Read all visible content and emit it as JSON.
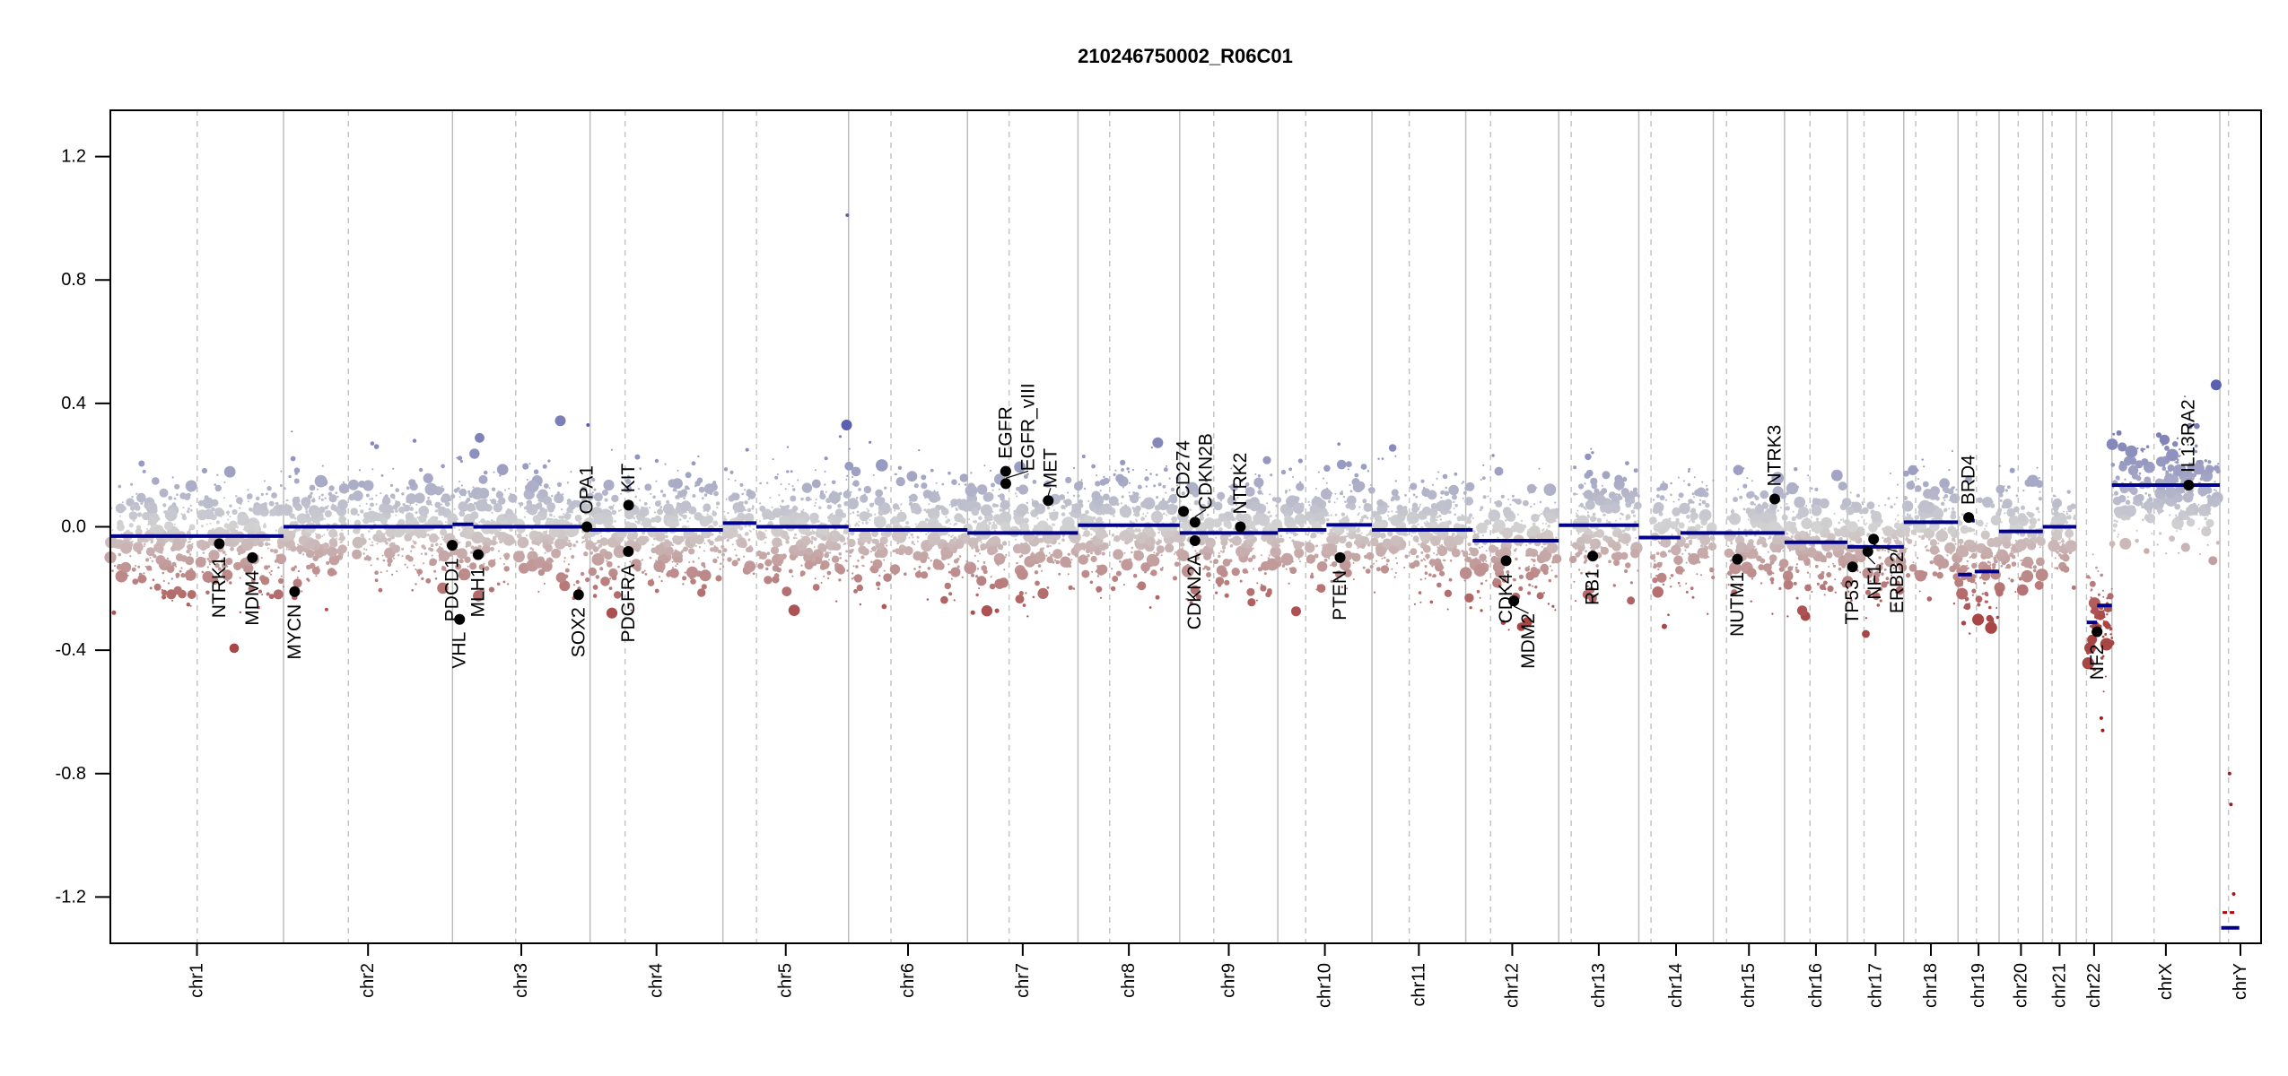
{
  "chart_data": {
    "type": "scatter",
    "title": "210246750002_R06C01",
    "xlabel": "",
    "ylabel": "",
    "ylim": [
      -1.35,
      1.35
    ],
    "yticks": [
      "-1.2",
      "-0.8",
      "-0.4",
      "0.0",
      "0.4",
      "0.8",
      "1.2"
    ],
    "grid": "chromosome boundaries (solid) and centromeres (dashed)",
    "colors": {
      "gain": "#7b7fb8",
      "neutral": "#d3d3d3",
      "loss": "#a84646",
      "segment": "#00008b",
      "gene": "#000000",
      "boundary": "#bdbdbd"
    },
    "chromosomes": [
      {
        "name": "chr1",
        "length": 249.3,
        "centromere": 125.0
      },
      {
        "name": "chr2",
        "length": 243.2,
        "centromere": 93.3
      },
      {
        "name": "chr3",
        "length": 198.0,
        "centromere": 91.0
      },
      {
        "name": "chr4",
        "length": 191.2,
        "centromere": 50.4
      },
      {
        "name": "chr5",
        "length": 180.9,
        "centromere": 48.4
      },
      {
        "name": "chr6",
        "length": 171.1,
        "centromere": 61.0
      },
      {
        "name": "chr7",
        "length": 159.1,
        "centromere": 59.9
      },
      {
        "name": "chr8",
        "length": 146.4,
        "centromere": 45.6
      },
      {
        "name": "chr9",
        "length": 141.2,
        "centromere": 49.0
      },
      {
        "name": "chr10",
        "length": 135.5,
        "centromere": 40.2
      },
      {
        "name": "chr11",
        "length": 135.0,
        "centromere": 53.7
      },
      {
        "name": "chr12",
        "length": 133.9,
        "centromere": 35.8
      },
      {
        "name": "chr13",
        "length": 115.2,
        "centromere": 17.9
      },
      {
        "name": "chr14",
        "length": 107.3,
        "centromere": 17.6
      },
      {
        "name": "chr15",
        "length": 102.5,
        "centromere": 19.0
      },
      {
        "name": "chr16",
        "length": 90.4,
        "centromere": 36.6
      },
      {
        "name": "chr17",
        "length": 81.2,
        "centromere": 24.0
      },
      {
        "name": "chr18",
        "length": 78.1,
        "centromere": 17.2
      },
      {
        "name": "chr19",
        "length": 59.1,
        "centromere": 26.5
      },
      {
        "name": "chr20",
        "length": 63.0,
        "centromere": 27.5
      },
      {
        "name": "chr21",
        "length": 48.1,
        "centromere": 13.2
      },
      {
        "name": "chr22",
        "length": 51.3,
        "centromere": 14.7
      },
      {
        "name": "chrX",
        "length": 155.3,
        "centromere": 60.6
      },
      {
        "name": "chrY",
        "length": 59.4,
        "centromere": 12.5
      }
    ],
    "segments": [
      {
        "chr": "chr1",
        "start": 0,
        "end": 249.3,
        "value": -0.03
      },
      {
        "chr": "chr2",
        "start": 0,
        "end": 243.2,
        "value": 0.0
      },
      {
        "chr": "chr3",
        "start": 0,
        "end": 30,
        "value": 0.008
      },
      {
        "chr": "chr3",
        "start": 30,
        "end": 198,
        "value": 0.0
      },
      {
        "chr": "chr4",
        "start": 0,
        "end": 191.2,
        "value": -0.01
      },
      {
        "chr": "chr5",
        "start": 0,
        "end": 48,
        "value": 0.012
      },
      {
        "chr": "chr5",
        "start": 48,
        "end": 180.9,
        "value": 0.0
      },
      {
        "chr": "chr6",
        "start": 0,
        "end": 171.1,
        "value": -0.01
      },
      {
        "chr": "chr7",
        "start": 0,
        "end": 159.1,
        "value": -0.02
      },
      {
        "chr": "chr8",
        "start": 0,
        "end": 146.4,
        "value": 0.005
      },
      {
        "chr": "chr9",
        "start": 0,
        "end": 141.2,
        "value": -0.02
      },
      {
        "chr": "chr10",
        "start": 0,
        "end": 70,
        "value": -0.01
      },
      {
        "chr": "chr10",
        "start": 70,
        "end": 135.5,
        "value": 0.006
      },
      {
        "chr": "chr11",
        "start": 0,
        "end": 135.0,
        "value": -0.01
      },
      {
        "chr": "chr12",
        "start": 0,
        "end": 10,
        "value": -0.01
      },
      {
        "chr": "chr12",
        "start": 10,
        "end": 133.9,
        "value": -0.045
      },
      {
        "chr": "chr13",
        "start": 0,
        "end": 115.2,
        "value": 0.005
      },
      {
        "chr": "chr14",
        "start": 0,
        "end": 60,
        "value": -0.035
      },
      {
        "chr": "chr14",
        "start": 60,
        "end": 107.3,
        "value": -0.02
      },
      {
        "chr": "chr15",
        "start": 0,
        "end": 102.5,
        "value": -0.02
      },
      {
        "chr": "chr16",
        "start": 0,
        "end": 90.4,
        "value": -0.05
      },
      {
        "chr": "chr17",
        "start": 0,
        "end": 81.2,
        "value": -0.065
      },
      {
        "chr": "chr18",
        "start": 0,
        "end": 78.1,
        "value": 0.015
      },
      {
        "chr": "chr19",
        "start": 0,
        "end": 20,
        "value": -0.155
      },
      {
        "chr": "chr19",
        "start": 20,
        "end": 24,
        "value": 0.02
      },
      {
        "chr": "chr19",
        "start": 24,
        "end": 59.1,
        "value": -0.145
      },
      {
        "chr": "chr20",
        "start": 0,
        "end": 63.0,
        "value": -0.015
      },
      {
        "chr": "chr21",
        "start": 0,
        "end": 48.1,
        "value": 0.0
      },
      {
        "chr": "chr22",
        "start": 15,
        "end": 30,
        "value": -0.31
      },
      {
        "chr": "chr22",
        "start": 30,
        "end": 51.3,
        "value": -0.255
      },
      {
        "chr": "chrX",
        "start": 0,
        "end": 155.3,
        "value": 0.135
      },
      {
        "chr": "chrY",
        "start": 2,
        "end": 28,
        "value": -1.3
      }
    ],
    "bin_noise": {
      "default_sd": 0.09,
      "overrides": [
        {
          "chr": "chr22",
          "start": 15,
          "end": 51.3,
          "mean": -0.3,
          "sd": 0.09
        },
        {
          "chr": "chrX",
          "start": 0,
          "end": 155.3,
          "mean": 0.12,
          "sd": 0.08
        },
        {
          "chr": "chr19",
          "start": 0,
          "end": 59.1,
          "mean": -0.12,
          "sd": 0.11
        }
      ]
    },
    "outliers": [
      {
        "chr": "chr5",
        "pos": 178,
        "value": 0.33,
        "size": "large"
      },
      {
        "chr": "chr5",
        "pos": 179,
        "value": 1.01,
        "size": "tiny"
      },
      {
        "chr": "chr3",
        "pos": 195,
        "value": 0.33,
        "size": "tiny"
      },
      {
        "chr": "chrX",
        "pos": 150,
        "value": 0.46,
        "size": "large"
      },
      {
        "chr": "chrY",
        "pos": 14,
        "value": -0.8,
        "size": "tiny"
      },
      {
        "chr": "chrY",
        "pos": 16,
        "value": -0.9,
        "size": "tiny"
      },
      {
        "chr": "chrY",
        "pos": 20,
        "value": -1.19,
        "size": "tiny"
      },
      {
        "chr": "chr22",
        "pos": 36,
        "value": -0.62,
        "size": "tiny"
      },
      {
        "chr": "chr22",
        "pos": 38,
        "value": -0.66,
        "size": "tiny"
      }
    ],
    "ychr_dash": {
      "chr": "chrY",
      "start": 4,
      "end": 24,
      "value": -1.25
    },
    "genes": [
      {
        "name": "NTRK1",
        "chr": "chr1",
        "pos": 156.8,
        "value": -0.055
      },
      {
        "name": "MDM4",
        "chr": "chr1",
        "pos": 204.5,
        "value": -0.1
      },
      {
        "name": "MYCN",
        "chr": "chr2",
        "pos": 16.0,
        "value": -0.21
      },
      {
        "name": "PDCD1",
        "chr": "chr2",
        "pos": 242.8,
        "value": -0.06
      },
      {
        "name": "VHL",
        "chr": "chr3",
        "pos": 10.2,
        "value": -0.3
      },
      {
        "name": "MLH1",
        "chr": "chr3",
        "pos": 37.0,
        "value": -0.09
      },
      {
        "name": "SOX2",
        "chr": "chr3",
        "pos": 181.4,
        "value": -0.22
      },
      {
        "name": "OPA1",
        "chr": "chr3",
        "pos": 193.3,
        "value": 0.0
      },
      {
        "name": "KIT",
        "chr": "chr4",
        "pos": 55.5,
        "value": 0.07
      },
      {
        "name": "PDGFRA",
        "chr": "chr4",
        "pos": 55.1,
        "value": -0.08
      },
      {
        "name": "EGFR",
        "chr": "chr7",
        "pos": 55.1,
        "value": 0.18
      },
      {
        "name": "EGFR_vIII",
        "chr": "chr7",
        "pos": 55.2,
        "value": 0.14
      },
      {
        "name": "MET",
        "chr": "chr7",
        "pos": 116.3,
        "value": 0.085
      },
      {
        "name": "CD274",
        "chr": "chr9",
        "pos": 5.5,
        "value": 0.05
      },
      {
        "name": "CDKN2B",
        "chr": "chr9",
        "pos": 22.0,
        "value": 0.015
      },
      {
        "name": "CDKN2A",
        "chr": "chr9",
        "pos": 21.9,
        "value": -0.045
      },
      {
        "name": "NTRK2",
        "chr": "chr9",
        "pos": 87.3,
        "value": 0.0
      },
      {
        "name": "PTEN",
        "chr": "chr10",
        "pos": 89.6,
        "value": -0.1
      },
      {
        "name": "CDK4",
        "chr": "chr12",
        "pos": 58.1,
        "value": -0.11
      },
      {
        "name": "MDM2",
        "chr": "chr12",
        "pos": 69.2,
        "value": -0.24
      },
      {
        "name": "RB1",
        "chr": "chr13",
        "pos": 48.9,
        "value": -0.095
      },
      {
        "name": "NUTM1",
        "chr": "chr15",
        "pos": 34.6,
        "value": -0.105
      },
      {
        "name": "NTRK3",
        "chr": "chr15",
        "pos": 88.4,
        "value": 0.09
      },
      {
        "name": "TP53",
        "chr": "chr17",
        "pos": 7.5,
        "value": -0.13
      },
      {
        "name": "NF1",
        "chr": "chr17",
        "pos": 29.5,
        "value": -0.08
      },
      {
        "name": "ERBB2",
        "chr": "chr17",
        "pos": 37.8,
        "value": -0.04
      },
      {
        "name": "BRD4",
        "chr": "chr19",
        "pos": 15.3,
        "value": 0.03
      },
      {
        "name": "NF2",
        "chr": "chr22",
        "pos": 30.0,
        "value": -0.34
      },
      {
        "name": "IL13RA2",
        "chr": "chrX",
        "pos": 110.4,
        "value": 0.135
      }
    ]
  }
}
